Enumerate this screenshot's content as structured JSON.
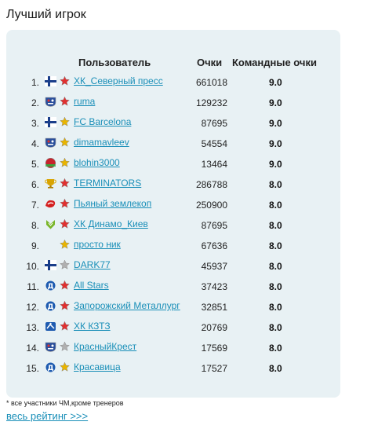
{
  "title": "Лучший игрок",
  "headers": {
    "user": "Пользователь",
    "points": "Очки",
    "team_points": "Командные очки"
  },
  "rows": [
    {
      "rank": "1.",
      "name": "ХК_Северный пресс",
      "points": "661018",
      "team": "9.0",
      "icon": "flag-finland-icon",
      "star": "red-star-icon"
    },
    {
      "rank": "2.",
      "name": "ruma",
      "points": "129232",
      "team": "9.0",
      "icon": "khl-shield-icon",
      "star": "red-star-icon"
    },
    {
      "rank": "3.",
      "name": "FC Barcelona",
      "points": "87695",
      "team": "9.0",
      "icon": "flag-finland-icon",
      "star": "gold-star-icon"
    },
    {
      "rank": "4.",
      "name": "dimamavleev",
      "points": "54554",
      "team": "9.0",
      "icon": "khl-shield-icon",
      "star": "gold-star-icon"
    },
    {
      "rank": "5.",
      "name": "blohin3000",
      "points": "13464",
      "team": "9.0",
      "icon": "flag-belarus-icon",
      "star": "gold-star-icon"
    },
    {
      "rank": "6.",
      "name": "TERMINATORS",
      "points": "286788",
      "team": "8.0",
      "icon": "trophy-icon",
      "star": "red-star-icon"
    },
    {
      "rank": "7.",
      "name": "Пьяный землекоп",
      "points": "250900",
      "team": "8.0",
      "icon": "red-team-logo-icon",
      "star": "red-star-icon"
    },
    {
      "rank": "8.",
      "name": "ХК Динамо_Киев",
      "points": "87695",
      "team": "8.0",
      "icon": "green-team-logo-icon",
      "star": "red-star-icon"
    },
    {
      "rank": "9.",
      "name": "просто ник",
      "points": "67636",
      "team": "8.0",
      "icon": "",
      "star": "gold-star-icon"
    },
    {
      "rank": "10.",
      "name": "DARK77",
      "points": "45937",
      "team": "8.0",
      "icon": "flag-finland-icon",
      "star": "grey-star-icon"
    },
    {
      "rank": "11.",
      "name": "All Stars",
      "points": "37423",
      "team": "8.0",
      "icon": "dynamo-logo-icon",
      "star": "red-star-icon"
    },
    {
      "rank": "12.",
      "name": "Запорожский Металлург",
      "points": "32851",
      "team": "8.0",
      "icon": "dynamo-logo-icon",
      "star": "red-star-icon"
    },
    {
      "rank": "13.",
      "name": "ХК КЗТЗ",
      "points": "20769",
      "team": "8.0",
      "icon": "hockey-team-logo-icon",
      "star": "red-star-icon"
    },
    {
      "rank": "14.",
      "name": "КрасныйКрест",
      "points": "17569",
      "team": "8.0",
      "icon": "khl-shield-icon",
      "star": "grey-star-icon"
    },
    {
      "rank": "15.",
      "name": "Красавица",
      "points": "17527",
      "team": "8.0",
      "icon": "dynamo-logo-icon",
      "star": "gold-star-icon"
    }
  ],
  "footnote": "* все участники ЧМ,кроме тренеров",
  "more_link": "весь рейтинг >>>",
  "colors": {
    "panel": "#e8f1f4",
    "link": "#1a8fb8",
    "red_star": "#e03030",
    "gold_star": "#e8b400",
    "grey_star": "#b0b0b0"
  }
}
